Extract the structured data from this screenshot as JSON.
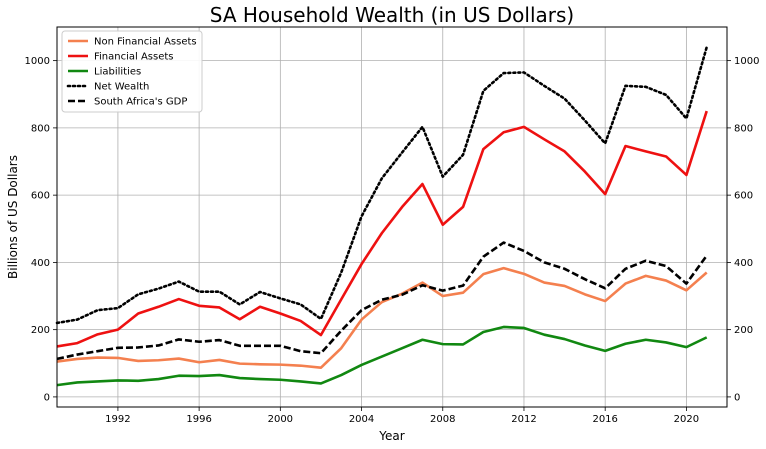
{
  "chart_data": {
    "type": "line",
    "title": "SA Household Wealth (in US Dollars)",
    "xlabel": "Year",
    "ylabel": "Billions of US Dollars",
    "xlim": [
      1989,
      2022
    ],
    "ylim": [
      -30,
      1100
    ],
    "xticks": [
      1992,
      1996,
      2000,
      2004,
      2008,
      2012,
      2016,
      2020
    ],
    "yticks": [
      0,
      200,
      400,
      600,
      800,
      1000
    ],
    "grid": true,
    "legend_position": "top-left",
    "x": [
      1989,
      1990,
      1991,
      1992,
      1993,
      1994,
      1995,
      1996,
      1997,
      1998,
      1999,
      2000,
      2001,
      2002,
      2003,
      2004,
      2005,
      2006,
      2007,
      2008,
      2009,
      2010,
      2011,
      2012,
      2013,
      2014,
      2015,
      2016,
      2017,
      2018,
      2019,
      2020,
      2021
    ],
    "series": [
      {
        "name": "Non Financial Assets",
        "color": "#f4804f",
        "style": "solid",
        "values": [
          105,
          113,
          117,
          116,
          107,
          109,
          114,
          103,
          110,
          99,
          97,
          96,
          93,
          87,
          145,
          230,
          282,
          307,
          340,
          300,
          310,
          365,
          383,
          366,
          340,
          330,
          305,
          285,
          337,
          360,
          346,
          317,
          370
        ]
      },
      {
        "name": "Financial Assets",
        "color": "#ee1111",
        "style": "solid",
        "values": [
          150,
          160,
          186,
          200,
          248,
          268,
          291,
          271,
          266,
          231,
          268,
          248,
          226,
          184,
          290,
          395,
          487,
          565,
          633,
          512,
          565,
          737,
          787,
          803,
          766,
          730,
          670,
          603,
          746,
          730,
          715,
          660,
          850
        ]
      },
      {
        "name": "Liabilities",
        "color": "#118811",
        "style": "solid",
        "values": [
          35,
          43,
          46,
          49,
          48,
          53,
          63,
          62,
          65,
          56,
          53,
          51,
          46,
          40,
          65,
          95,
          120,
          145,
          170,
          157,
          156,
          193,
          208,
          205,
          185,
          172,
          153,
          137,
          158,
          170,
          162,
          148,
          177
        ]
      },
      {
        "name": "Net Wealth",
        "color": "#000000",
        "style": "dotted",
        "values": [
          220,
          230,
          258,
          264,
          305,
          322,
          343,
          313,
          313,
          275,
          312,
          293,
          275,
          232,
          370,
          537,
          650,
          727,
          803,
          655,
          720,
          910,
          963,
          965,
          925,
          887,
          822,
          754,
          925,
          922,
          898,
          828,
          1040
        ]
      },
      {
        "name": "South Africa's GDP",
        "color": "#000000",
        "style": "dashed",
        "values": [
          113,
          126,
          136,
          146,
          147,
          153,
          171,
          164,
          169,
          152,
          152,
          152,
          136,
          130,
          197,
          258,
          289,
          304,
          332,
          316,
          331,
          417,
          459,
          434,
          400,
          381,
          350,
          323,
          381,
          405,
          389,
          337,
          420
        ]
      }
    ]
  }
}
